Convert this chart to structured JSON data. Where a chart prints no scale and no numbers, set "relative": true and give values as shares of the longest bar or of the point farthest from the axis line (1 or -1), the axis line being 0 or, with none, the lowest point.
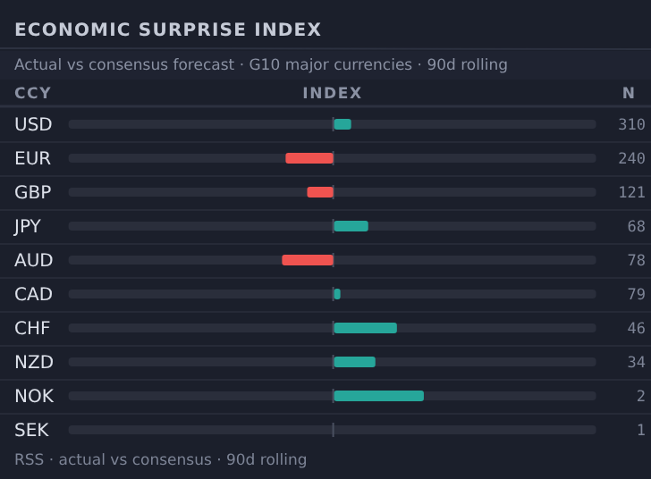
{
  "chart_data": {
    "type": "bar",
    "orientation": "horizontal",
    "relative": true,
    "title": "ECONOMIC SURPRISE INDEX",
    "subtitle": "Actual vs consensus forecast · G10 major currencies · 90d rolling",
    "ylabel": "CCY",
    "xlabel": "INDEX",
    "categories": [
      "USD",
      "EUR",
      "GBP",
      "JPY",
      "AUD",
      "CAD",
      "CHF",
      "NZD",
      "NOK",
      "SEK"
    ],
    "values": [
      0.19,
      -0.53,
      -0.29,
      0.38,
      -0.57,
      0.07,
      0.7,
      0.46,
      1,
      0
    ],
    "colors": [
      "#26a69a",
      "#ef5350",
      "#ef5350",
      "#26a69a",
      "#ef5350",
      "#26a69a",
      "#26a69a",
      "#26a69a",
      "#26a69a",
      null
    ],
    "annotations": [
      "N",
      "310",
      "240",
      "121",
      "68",
      "78",
      "79",
      "46",
      "34",
      "2",
      "1",
      "RSS · actual vs consensus · 90d rolling"
    ]
  }
}
